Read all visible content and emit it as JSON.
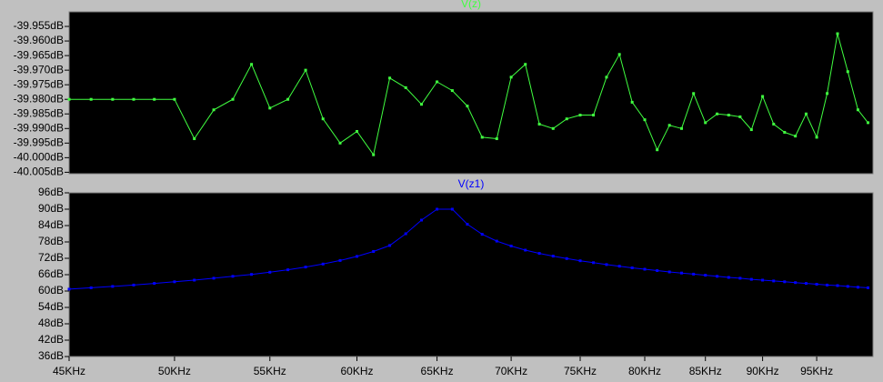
{
  "chart_data": [
    {
      "type": "line",
      "log_x": true,
      "x": [
        45000,
        46000,
        47000,
        48000,
        49000,
        50000,
        51000,
        52000,
        53000,
        54000,
        55000,
        56000,
        57000,
        58000,
        59000,
        60000,
        61000,
        62000,
        63000,
        64000,
        65000,
        66000,
        67000,
        68000,
        69000,
        70000,
        71000,
        72000,
        73000,
        74000,
        75000,
        76000,
        77000,
        78000,
        79000,
        80000,
        81000,
        82000,
        83000,
        84000,
        85000,
        86000,
        87000,
        88000,
        89000,
        90000,
        91000,
        92000,
        93000,
        94000,
        95000,
        96000,
        97000,
        98000,
        99000,
        100000
      ],
      "series": [
        {
          "name": "V(z)",
          "color": "#40ff40",
          "values": [
            -39.98,
            -39.98,
            -39.98,
            -39.98,
            -39.98,
            -39.98,
            -39.9935,
            -39.9836,
            -39.98,
            -39.968,
            -39.983,
            -39.98,
            -39.97,
            -39.9867,
            -39.995,
            -39.991,
            -39.999,
            -39.9727,
            -39.976,
            -39.9817,
            -39.974,
            -39.977,
            -39.9823,
            -39.993,
            -39.9935,
            -39.9724,
            -39.968,
            -39.9885,
            -39.99,
            -39.9867,
            -39.9854,
            -39.9854,
            -39.9724,
            -39.9646,
            -39.981,
            -39.987,
            -39.9973,
            -39.9889,
            -39.99,
            -39.978,
            -39.988,
            -39.985,
            -39.9854,
            -39.986,
            -39.9904,
            -39.979,
            -39.9885,
            -39.9913,
            -39.9926,
            -39.985,
            -39.993,
            -39.978,
            -39.9575,
            -39.9705,
            -39.9836,
            -39.988
          ]
        }
      ],
      "xlim": [
        45000,
        100500
      ],
      "ylim": [
        -40.0055,
        -39.95
      ],
      "yticks": [
        {
          "value": -39.955,
          "label": "-39.955dB"
        },
        {
          "value": -39.96,
          "label": "-39.960dB"
        },
        {
          "value": -39.965,
          "label": "-39.965dB"
        },
        {
          "value": -39.97,
          "label": "-39.970dB"
        },
        {
          "value": -39.975,
          "label": "-39.975dB"
        },
        {
          "value": -39.98,
          "label": "-39.980dB"
        },
        {
          "value": -39.985,
          "label": "-39.985dB"
        },
        {
          "value": -39.99,
          "label": "-39.990dB"
        },
        {
          "value": -39.995,
          "label": "-39.995dB"
        },
        {
          "value": -40.0,
          "label": "-40.000dB"
        },
        {
          "value": -40.005,
          "label": "-40.005dB"
        }
      ]
    },
    {
      "type": "line",
      "log_x": true,
      "x": [
        45000,
        46000,
        47000,
        48000,
        49000,
        50000,
        51000,
        52000,
        53000,
        54000,
        55000,
        56000,
        57000,
        58000,
        59000,
        60000,
        61000,
        62000,
        63000,
        64000,
        65000,
        66000,
        67000,
        68000,
        69000,
        70000,
        71000,
        72000,
        73000,
        74000,
        75000,
        76000,
        77000,
        78000,
        79000,
        80000,
        81000,
        82000,
        83000,
        84000,
        85000,
        86000,
        87000,
        88000,
        89000,
        90000,
        91000,
        92000,
        93000,
        94000,
        95000,
        96000,
        97000,
        98000,
        99000,
        100000
      ],
      "series": [
        {
          "name": "V(z1)",
          "color": "#0000ff",
          "values": [
            60.7,
            61.2,
            61.7,
            62.2,
            62.8,
            63.4,
            64.0,
            64.7,
            65.4,
            66.1,
            66.9,
            67.8,
            68.8,
            69.9,
            71.2,
            72.7,
            74.5,
            76.7,
            81.0,
            86.0,
            90.0,
            90.0,
            84.5,
            80.8,
            78.3,
            76.5,
            75.0,
            73.8,
            72.8,
            71.9,
            71.1,
            70.4,
            69.7,
            69.1,
            68.5,
            68.0,
            67.5,
            67.0,
            66.6,
            66.2,
            65.8,
            65.4,
            65.0,
            64.7,
            64.3,
            64.0,
            63.7,
            63.4,
            63.1,
            62.8,
            62.5,
            62.2,
            62.0,
            61.7,
            61.4,
            61.2
          ]
        }
      ],
      "xlim": [
        45000,
        100500
      ],
      "ylim": [
        36,
        96
      ],
      "yticks": [
        {
          "value": 36,
          "label": "36dB"
        },
        {
          "value": 42,
          "label": "42dB"
        },
        {
          "value": 48,
          "label": "48dB"
        },
        {
          "value": 54,
          "label": "54dB"
        },
        {
          "value": 60,
          "label": "60dB"
        },
        {
          "value": 66,
          "label": "66dB"
        },
        {
          "value": 72,
          "label": "72dB"
        },
        {
          "value": 78,
          "label": "78dB"
        },
        {
          "value": 84,
          "label": "84dB"
        },
        {
          "value": 90,
          "label": "90dB"
        },
        {
          "value": 96,
          "label": "96dB"
        }
      ],
      "xticks": [
        {
          "value": 45000,
          "label": "45KHz"
        },
        {
          "value": 50000,
          "label": "50KHz"
        },
        {
          "value": 55000,
          "label": "55KHz"
        },
        {
          "value": 60000,
          "label": "60KHz"
        },
        {
          "value": 65000,
          "label": "65KHz"
        },
        {
          "value": 70000,
          "label": "70KHz"
        },
        {
          "value": 75000,
          "label": "75KHz"
        },
        {
          "value": 80000,
          "label": "80KHz"
        },
        {
          "value": 85000,
          "label": "85KHz"
        },
        {
          "value": 90000,
          "label": "90KHz"
        },
        {
          "value": 95000,
          "label": "95KHz"
        }
      ]
    }
  ]
}
